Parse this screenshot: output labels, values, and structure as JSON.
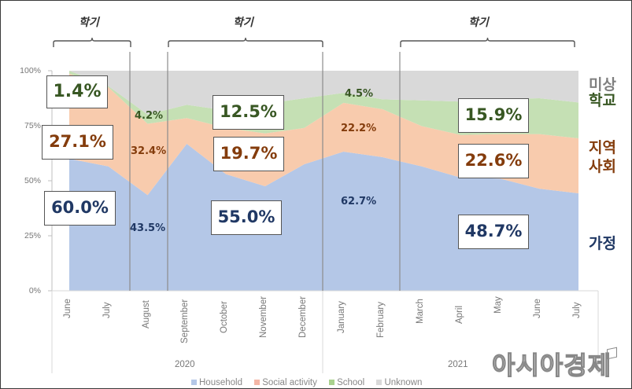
{
  "colors": {
    "household": "#b4c7e7",
    "social": "#f8cbad",
    "school": "#c5e0b4",
    "unknown": "#d9d9d9",
    "household_text": "#203864",
    "social_text": "#843c0c",
    "school_text": "#385723",
    "unknown_text": "#7f7f7f"
  },
  "chart_data": {
    "type": "area",
    "stacked": true,
    "normalized": true,
    "categories": [
      "June",
      "July",
      "August",
      "September",
      "October",
      "November",
      "December",
      "January",
      "February",
      "March",
      "April",
      "May",
      "June",
      "July"
    ],
    "year_groups": [
      {
        "label": "2020",
        "months": [
          "June",
          "July",
          "August",
          "September",
          "October",
          "November",
          "December"
        ]
      },
      {
        "label": "2021",
        "months": [
          "January",
          "February",
          "March",
          "April",
          "May",
          "June",
          "July"
        ]
      }
    ],
    "series": [
      {
        "name": "Household",
        "values": [
          60.0,
          56.5,
          43.5,
          66.8,
          53.0,
          47.5,
          57.5,
          63.2,
          60.7,
          56.5,
          51.4,
          51.0,
          46.4,
          44.3
        ]
      },
      {
        "name": "Social activity",
        "values": [
          38.6,
          36.0,
          32.4,
          11.7,
          21.0,
          24.0,
          16.5,
          22.2,
          21.8,
          18.3,
          19.4,
          20.2,
          24.8,
          25.0
        ]
      },
      {
        "name": "School",
        "values": [
          1.4,
          0.5,
          4.2,
          6.0,
          8.0,
          13.5,
          13.5,
          4.5,
          4.5,
          11.7,
          15.2,
          15.9,
          16.3,
          16.3
        ]
      },
      {
        "name": "Unknown",
        "values": [
          0.0,
          7.0,
          19.9,
          15.5,
          18.0,
          15.0,
          12.5,
          10.1,
          13.0,
          13.5,
          14.0,
          12.9,
          12.5,
          14.4
        ]
      }
    ],
    "ylim": [
      0,
      100
    ],
    "yticks": [
      "0%",
      "25%",
      "50%",
      "75%",
      "100%"
    ],
    "legend": [
      "Household",
      "Social activity",
      "School",
      "Unknown"
    ],
    "legend_position": "bottom",
    "semester_label": "학기",
    "semester_spans": [
      [
        "June",
        "July"
      ],
      [
        "September",
        "December"
      ],
      [
        "March",
        "July"
      ]
    ],
    "callouts": [
      {
        "series": "School",
        "text": "1.4%",
        "boxed": true
      },
      {
        "series": "Social activity",
        "text": "27.1%",
        "boxed": true
      },
      {
        "series": "Household",
        "text": "60.0%",
        "boxed": true
      },
      {
        "series": "School",
        "text": "4.2%",
        "boxed": false
      },
      {
        "series": "Social activity",
        "text": "32.4%",
        "boxed": false
      },
      {
        "series": "Household",
        "text": "43.5%",
        "boxed": false
      },
      {
        "series": "School",
        "text": "12.5%",
        "boxed": true
      },
      {
        "series": "Social activity",
        "text": "19.7%",
        "boxed": true
      },
      {
        "series": "Household",
        "text": "55.0%",
        "boxed": true
      },
      {
        "series": "School",
        "text": "4.5%",
        "boxed": false
      },
      {
        "series": "Social activity",
        "text": "22.2%",
        "boxed": false
      },
      {
        "series": "Household",
        "text": "62.7%",
        "boxed": false
      },
      {
        "series": "School",
        "text": "15.9%",
        "boxed": true
      },
      {
        "series": "Social activity",
        "text": "22.6%",
        "boxed": true
      },
      {
        "series": "Household",
        "text": "48.7%",
        "boxed": true
      }
    ],
    "side_labels": {
      "unknown": "미상",
      "school": "학교",
      "social_line1": "지역",
      "social_line2": "사회",
      "household": "가정"
    }
  },
  "watermark": "아시아경제"
}
